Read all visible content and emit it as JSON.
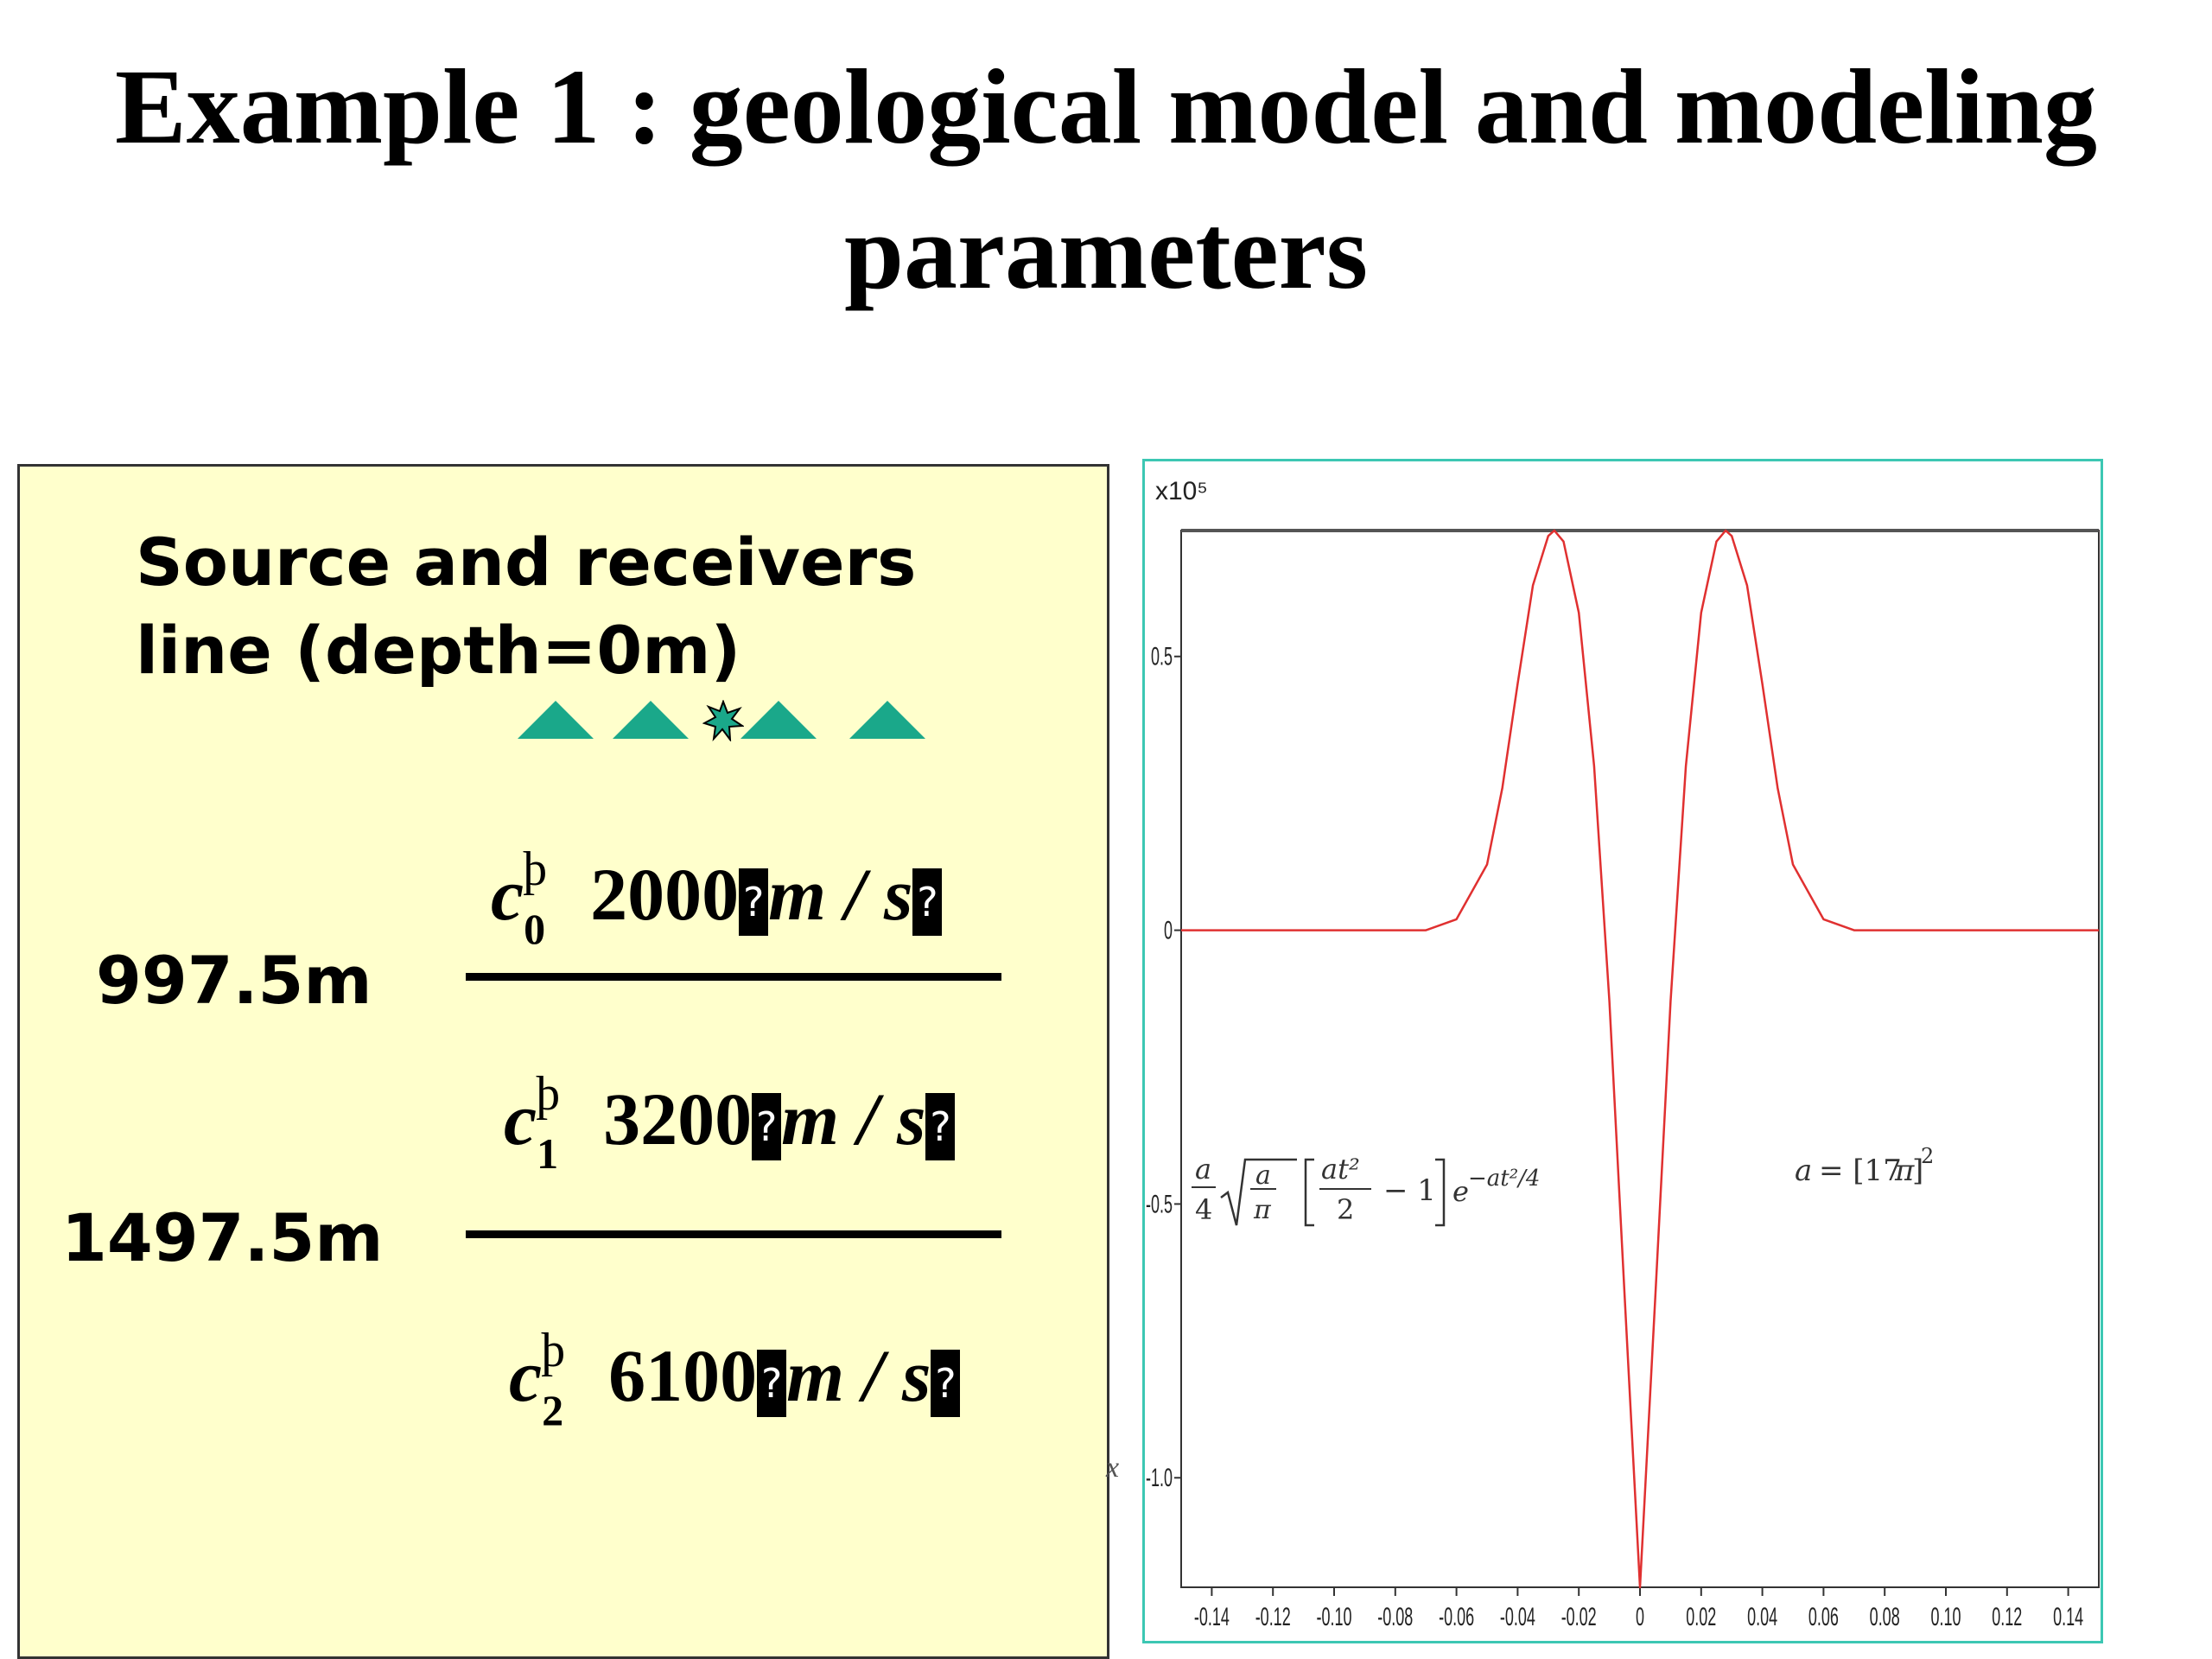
{
  "slide": {
    "title_line1": "Example 1 : geological model and modeling",
    "title_line2": "parameters"
  },
  "model": {
    "source_line1": "Source and receivers",
    "source_line2": "line (depth=0m)",
    "layers": [
      {
        "symbol": "c",
        "index": "0",
        "superscript": "þ",
        "velocity": "2000",
        "unit": "m / s"
      },
      {
        "symbol": "c",
        "index": "1",
        "superscript": "þ",
        "velocity": "3200",
        "unit": "m / s"
      },
      {
        "symbol": "c",
        "index": "2",
        "superscript": "þ",
        "velocity": "6100",
        "unit": "m / s"
      }
    ],
    "boundaries": [
      "997.5m",
      "1497.5m"
    ],
    "missing_glyph": "?",
    "colors": {
      "panel": "#ffffcc",
      "receiver": "#1aa88a",
      "source": "#1aa88a"
    }
  },
  "chart_data": {
    "type": "line",
    "title": "",
    "xlabel": "",
    "ylabel": "",
    "exponent_label": "x10⁵",
    "xlim": [
      -0.15,
      0.15
    ],
    "ylim": [
      -1.2,
      0.73
    ],
    "x_ticks": [
      "-0.14",
      "-0.12",
      "-0.10",
      "-0.08",
      "-0.06",
      "-0.04",
      "-0.02",
      "0",
      "0.02",
      "0.04",
      "0.06",
      "0.08",
      "0.10",
      "0.12",
      "0.14"
    ],
    "x_tick_values": [
      -0.14,
      -0.12,
      -0.1,
      -0.08,
      -0.06,
      -0.04,
      -0.02,
      0,
      0.02,
      0.04,
      0.06,
      0.08,
      0.1,
      0.12,
      0.14
    ],
    "y_ticks": [
      "0.5",
      "0",
      "-0.5",
      "-1.0"
    ],
    "y_tick_values": [
      0.5,
      0,
      -0.5,
      -1.0
    ],
    "series": [
      {
        "color": "#e03030",
        "x": [
          -0.15,
          -0.12,
          -0.09,
          -0.07,
          -0.06,
          -0.05,
          -0.045,
          -0.04,
          -0.035,
          -0.03,
          -0.028,
          -0.025,
          -0.02,
          -0.015,
          -0.01,
          -0.005,
          0,
          0.005,
          0.01,
          0.015,
          0.02,
          0.025,
          0.028,
          0.03,
          0.035,
          0.04,
          0.045,
          0.05,
          0.06,
          0.07,
          0.09,
          0.12,
          0.15
        ],
        "y": [
          0,
          0,
          0,
          0.0,
          0.02,
          0.12,
          0.26,
          0.45,
          0.63,
          0.72,
          0.73,
          0.71,
          0.58,
          0.3,
          -0.13,
          -0.67,
          -1.2,
          -0.67,
          -0.13,
          0.3,
          0.58,
          0.71,
          0.73,
          0.72,
          0.63,
          0.45,
          0.26,
          0.12,
          0.02,
          0.0,
          0,
          0,
          0
        ]
      }
    ],
    "annotations": {
      "formula": "a/4 √(a/π) [at²/2 − 1] e^(−at²/4)",
      "a_def": "a = [17π]²"
    }
  },
  "stray_mark": "x"
}
